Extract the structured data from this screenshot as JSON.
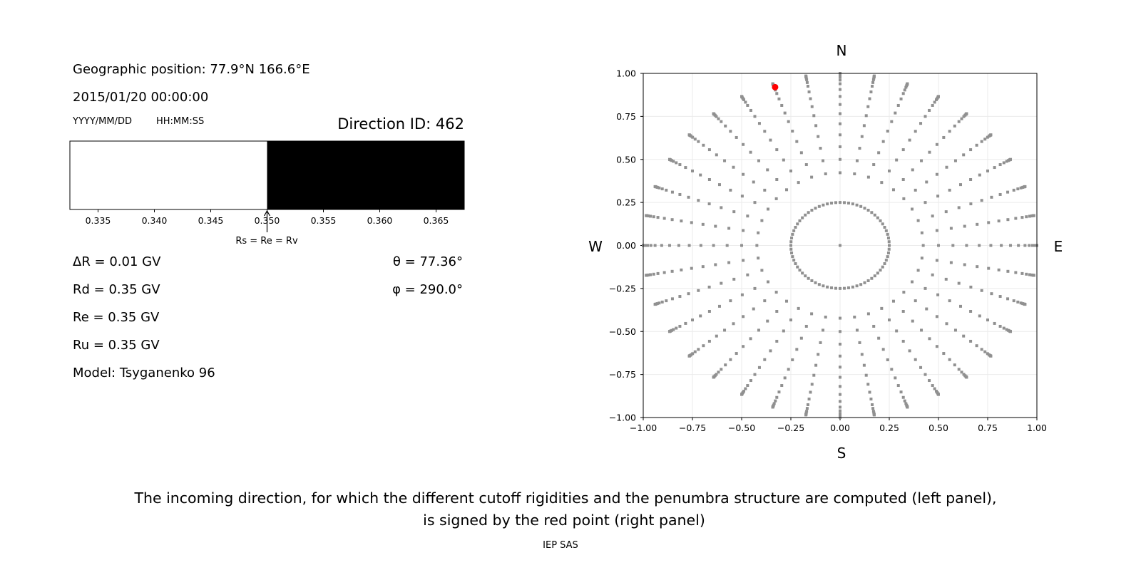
{
  "left_panel": {
    "geo_position": "Geographic position: 77.9°N 166.6°E",
    "datetime": "2015/01/20 00:00:00",
    "date_format": "YYYY/MM/DD",
    "time_format": "HH:MM:SS",
    "direction_id": "Direction ID: 462",
    "delta_r": "ΔR = 0.01 GV",
    "rd": "Rd = 0.35 GV",
    "re": "Re = 0.35 GV",
    "ru": "Ru = 0.35 GV",
    "model": "Model: Tsyganenko 96",
    "theta": "θ = 77.36°",
    "phi": "φ = 290.0°",
    "arrow_label": "Rs = Re = Rv"
  },
  "chart_data": [
    {
      "type": "bar",
      "xlim": [
        0.3325,
        0.3675
      ],
      "xticks": [
        "0.335",
        "0.340",
        "0.345",
        "0.350",
        "0.355",
        "0.360",
        "0.365"
      ],
      "segments": [
        {
          "from": 0.3325,
          "to": 0.35,
          "color": "#ffffff"
        },
        {
          "from": 0.35,
          "to": 0.3675,
          "color": "#000000"
        }
      ],
      "arrow_at": 0.35
    },
    {
      "type": "scatter",
      "xlim": [
        -1,
        1
      ],
      "ylim": [
        -1,
        1
      ],
      "grid": true,
      "xticks": [
        "−1.00",
        "−0.75",
        "−0.50",
        "−0.25",
        "0.00",
        "0.25",
        "0.50",
        "0.75",
        "1.00"
      ],
      "yticks": [
        "−1.00",
        "−0.75",
        "−0.50",
        "−0.25",
        "0.00",
        "0.25",
        "0.50",
        "0.75",
        "1.00"
      ],
      "compass": {
        "north": "N",
        "south": "S",
        "west": "W",
        "east": "E"
      },
      "point_color": "#909090",
      "center_point": [
        0,
        0
      ],
      "inner_ring": {
        "radius": 0.25,
        "step_deg": 5
      },
      "rays": {
        "azimuth_step_deg": 10,
        "zenith_deg": [
          25,
          30,
          35,
          40,
          45,
          50,
          55,
          60,
          65,
          70,
          74,
          78,
          81,
          84,
          86,
          88,
          90
        ]
      },
      "highlight": {
        "x": -0.33,
        "y": 0.92,
        "color": "#ff0000"
      }
    }
  ],
  "caption": {
    "line1": "The incoming direction, for which the different cutoff rigidities and the penumbra structure are computed (left panel),",
    "line2": "is signed by the red point (right panel)"
  },
  "footer": "IEP SAS"
}
